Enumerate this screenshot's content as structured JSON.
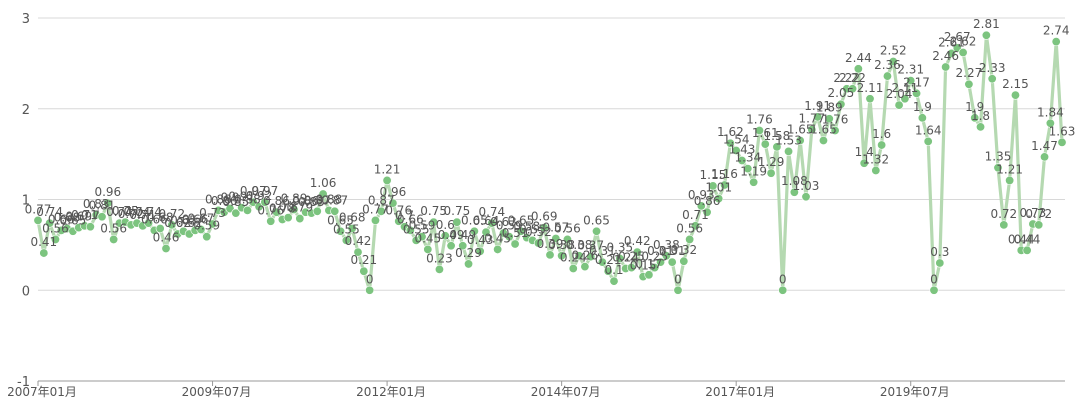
{
  "chart_data": {
    "type": "line",
    "title": "",
    "xlabel": "",
    "ylabel": "",
    "ylim": [
      -1,
      3
    ],
    "y_ticks": [
      "3",
      "2",
      "1",
      "0",
      "-1"
    ],
    "x_ticks": [
      "2007年01月",
      "2009年07月",
      "2012年01月",
      "2014年07月",
      "2017年01月",
      "2019年07月"
    ],
    "grid": "horizontal",
    "legend": "none",
    "series_color": "#7cc47f",
    "line_color": "#b5d9b1",
    "grid_color": "#d8d8d8",
    "series": [
      {
        "values": [
          0.77,
          0.41,
          0.74,
          0.56,
          0.66,
          0.68,
          0.65,
          0.69,
          0.71,
          0.7,
          0.83,
          0.81,
          0.96,
          0.56,
          0.74,
          0.75,
          0.72,
          0.74,
          0.71,
          0.74,
          0.66,
          0.68,
          0.46,
          0.72,
          0.62,
          0.65,
          0.62,
          0.66,
          0.67,
          0.59,
          0.73,
          0.88,
          0.86,
          0.9,
          0.85,
          0.91,
          0.88,
          0.97,
          0.92,
          0.97,
          0.76,
          0.86,
          0.78,
          0.8,
          0.89,
          0.79,
          0.86,
          0.85,
          0.87,
          1.06,
          0.88,
          0.87,
          0.65,
          0.55,
          0.68,
          0.42,
          0.21,
          0.0,
          0.77,
          0.87,
          1.21,
          0.96,
          0.76,
          0.7,
          0.66,
          0.55,
          0.59,
          0.45,
          0.75,
          0.23,
          0.6,
          0.49,
          0.75,
          0.49,
          0.29,
          0.65,
          0.43,
          0.64,
          0.74,
          0.45,
          0.63,
          0.59,
          0.51,
          0.65,
          0.58,
          0.55,
          0.52,
          0.69,
          0.39,
          0.57,
          0.38,
          0.56,
          0.24,
          0.38,
          0.26,
          0.37,
          0.65,
          0.31,
          0.21,
          0.1,
          0.35,
          0.24,
          0.25,
          0.42,
          0.15,
          0.17,
          0.25,
          0.31,
          0.38,
          0.31,
          0.0,
          0.32,
          0.56,
          0.71,
          0.93,
          0.86,
          1.15,
          1.01,
          1.16,
          1.62,
          1.54,
          1.43,
          1.34,
          1.19,
          1.76,
          1.61,
          1.29,
          1.58,
          0.0,
          1.53,
          1.08,
          1.65,
          1.03,
          1.77,
          1.91,
          1.65,
          1.89,
          1.76,
          2.05,
          2.22,
          2.22,
          2.44,
          1.4,
          2.11,
          1.32,
          1.6,
          2.36,
          2.52,
          2.04,
          2.11,
          2.31,
          2.17,
          1.9,
          1.64,
          0.0,
          0.3,
          2.46,
          2.61,
          2.67,
          2.62,
          2.27,
          1.9,
          1.8,
          2.81,
          2.33,
          1.35,
          0.72,
          1.21,
          2.15,
          0.44,
          0.44,
          0.73,
          0.72,
          1.47,
          1.84,
          2.74,
          1.63
        ]
      }
    ]
  }
}
